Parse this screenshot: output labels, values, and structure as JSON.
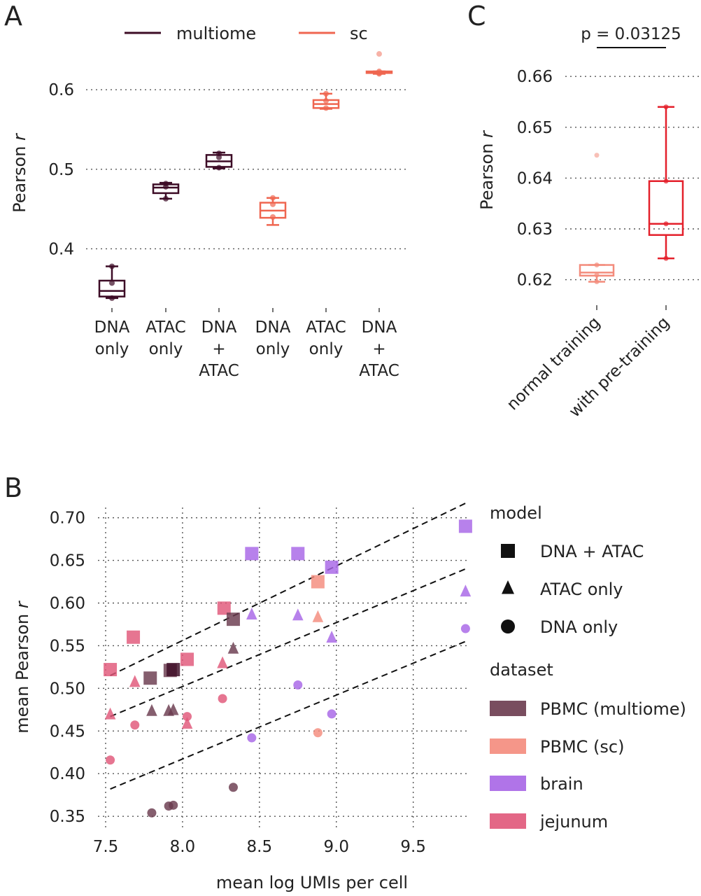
{
  "colors": {
    "multiome": "#3d0c26",
    "sc": "#ef6650",
    "normal": "#f38c7c",
    "pretrain": "#e4202b",
    "pbmc_multiome": "#6a3a4e",
    "pbmc_sc": "#f48b7c",
    "brain": "#a765e6",
    "jejunum": "#e05779"
  },
  "panel_labels": {
    "a": "A",
    "b": "B",
    "c": "C"
  },
  "chart_data": [
    {
      "id": "A",
      "type": "box",
      "ylabel": "Pearson",
      "ylabel_italic": "r",
      "ylim": [
        0.33,
        0.66
      ],
      "yticks": [
        0.4,
        0.5,
        0.6
      ],
      "ytick_labels": [
        "0.4",
        "0.5",
        "0.6"
      ],
      "grid": "horizontal dotted",
      "legend": {
        "placement": "top",
        "items": [
          {
            "label": "multiome",
            "color": "#3d0c26"
          },
          {
            "label": "sc",
            "color": "#ef6650"
          }
        ]
      },
      "categories": [
        {
          "lines": [
            "DNA",
            "only"
          ],
          "group": "multiome"
        },
        {
          "lines": [
            "ATAC",
            "only"
          ],
          "group": "multiome"
        },
        {
          "lines": [
            "DNA",
            "+",
            "ATAC"
          ],
          "group": "multiome"
        },
        {
          "lines": [
            "DNA",
            "only"
          ],
          "group": "sc"
        },
        {
          "lines": [
            "ATAC",
            "only"
          ],
          "group": "sc"
        },
        {
          "lines": [
            "DNA",
            "+",
            "ATAC"
          ],
          "group": "sc"
        }
      ],
      "boxes": [
        {
          "min": 0.338,
          "q1": 0.34,
          "median": 0.347,
          "q3": 0.36,
          "max": 0.378,
          "points": [
            0.378,
            0.357,
            0.338
          ]
        },
        {
          "min": 0.463,
          "q1": 0.47,
          "median": 0.477,
          "q3": 0.481,
          "max": 0.483,
          "points": [
            0.482,
            0.478,
            0.463
          ]
        },
        {
          "min": 0.501,
          "q1": 0.503,
          "median": 0.51,
          "q3": 0.518,
          "max": 0.521,
          "points": [
            0.52,
            0.515,
            0.502
          ]
        },
        {
          "min": 0.43,
          "q1": 0.439,
          "median": 0.448,
          "q3": 0.458,
          "max": 0.464,
          "points": [
            0.464,
            0.456,
            0.44
          ]
        },
        {
          "min": 0.576,
          "q1": 0.577,
          "median": 0.582,
          "q3": 0.587,
          "max": 0.595,
          "points": [
            0.595,
            0.586,
            0.577
          ]
        },
        {
          "min": 0.62,
          "q1": 0.621,
          "median": 0.622,
          "q3": 0.623,
          "max": 0.623,
          "points": [
            0.623,
            0.621,
            0.62
          ],
          "outliers": [
            0.645
          ]
        }
      ]
    },
    {
      "id": "C",
      "type": "box",
      "ylabel": "Pearson",
      "ylabel_italic": "r",
      "ylim": [
        0.6165,
        0.6665
      ],
      "yticks": [
        0.62,
        0.63,
        0.64,
        0.65,
        0.66
      ],
      "ytick_labels": [
        "0.62",
        "0.63",
        "0.64",
        "0.65",
        "0.66"
      ],
      "grid": "horizontal dotted",
      "categories": [
        "normal training",
        "with pre-training"
      ],
      "annotation": "p = 0.03125",
      "boxes": [
        {
          "min": 0.6196,
          "q1": 0.6208,
          "median": 0.6214,
          "q3": 0.6229,
          "max": 0.6229,
          "points": [
            0.6229,
            0.6209,
            0.6196
          ],
          "outliers": [
            0.6445
          ]
        },
        {
          "min": 0.6242,
          "q1": 0.6288,
          "median": 0.631,
          "q3": 0.6394,
          "max": 0.654,
          "points": [
            0.654,
            0.6394,
            0.631,
            0.6242
          ]
        }
      ]
    },
    {
      "id": "B",
      "type": "scatter",
      "xlabel": "mean log UMIs per cell",
      "ylabel": "mean Pearson",
      "ylabel_italic": "r",
      "xlim": [
        7.45,
        9.87
      ],
      "ylim": [
        0.337,
        0.712
      ],
      "xticks": [
        7.5,
        8.0,
        8.5,
        9.0,
        9.5
      ],
      "xtick_labels": [
        "7.5",
        "8.0",
        "8.5",
        "9.0",
        "9.5"
      ],
      "yticks": [
        0.35,
        0.4,
        0.45,
        0.5,
        0.55,
        0.6,
        0.65,
        0.7
      ],
      "ytick_labels": [
        "0.35",
        "0.40",
        "0.45",
        "0.50",
        "0.55",
        "0.60",
        "0.65",
        "0.70"
      ],
      "grid": "both dotted",
      "legend": {
        "placement": "right",
        "model_title": "model",
        "models": [
          {
            "label": "DNA + ATAC",
            "marker": "square"
          },
          {
            "label": "ATAC only",
            "marker": "triangle"
          },
          {
            "label": "DNA only",
            "marker": "circle"
          }
        ],
        "dataset_title": "dataset",
        "datasets": [
          {
            "label": "PBMC (multiome)",
            "key": "pbmc_multiome"
          },
          {
            "label": "PBMC (sc)",
            "key": "pbmc_sc"
          },
          {
            "label": "brain",
            "key": "brain"
          },
          {
            "label": "jejunum",
            "key": "jejunum"
          }
        ]
      },
      "trend_lines": [
        {
          "model": "square",
          "x": [
            7.53,
            9.84
          ],
          "y": [
            0.515,
            0.717
          ]
        },
        {
          "model": "triangle",
          "x": [
            7.53,
            9.84
          ],
          "y": [
            0.467,
            0.64
          ]
        },
        {
          "model": "circle",
          "x": [
            7.53,
            9.84
          ],
          "y": [
            0.382,
            0.555
          ]
        }
      ],
      "points": [
        {
          "x": 7.53,
          "y": 0.522,
          "m": "square",
          "d": "jejunum"
        },
        {
          "x": 7.68,
          "y": 0.56,
          "m": "square",
          "d": "jejunum"
        },
        {
          "x": 8.03,
          "y": 0.534,
          "m": "square",
          "d": "jejunum"
        },
        {
          "x": 8.27,
          "y": 0.594,
          "m": "square",
          "d": "jejunum"
        },
        {
          "x": 7.79,
          "y": 0.512,
          "m": "square",
          "d": "pbmc_multiome"
        },
        {
          "x": 7.92,
          "y": 0.521,
          "m": "square",
          "d": "pbmc_multiome"
        },
        {
          "x": 7.94,
          "y": 0.522,
          "m": "square",
          "d": "multiome_dark"
        },
        {
          "x": 8.33,
          "y": 0.581,
          "m": "square",
          "d": "pbmc_multiome"
        },
        {
          "x": 8.88,
          "y": 0.625,
          "m": "square",
          "d": "pbmc_sc"
        },
        {
          "x": 8.45,
          "y": 0.658,
          "m": "square",
          "d": "brain"
        },
        {
          "x": 8.75,
          "y": 0.658,
          "m": "square",
          "d": "brain"
        },
        {
          "x": 8.97,
          "y": 0.642,
          "m": "square",
          "d": "brain"
        },
        {
          "x": 9.84,
          "y": 0.69,
          "m": "square",
          "d": "brain"
        },
        {
          "x": 7.53,
          "y": 0.469,
          "m": "triangle",
          "d": "jejunum"
        },
        {
          "x": 7.69,
          "y": 0.507,
          "m": "triangle",
          "d": "jejunum"
        },
        {
          "x": 8.03,
          "y": 0.458,
          "m": "triangle",
          "d": "jejunum"
        },
        {
          "x": 8.26,
          "y": 0.529,
          "m": "triangle",
          "d": "jejunum"
        },
        {
          "x": 7.8,
          "y": 0.473,
          "m": "triangle",
          "d": "pbmc_multiome"
        },
        {
          "x": 7.91,
          "y": 0.473,
          "m": "triangle",
          "d": "pbmc_multiome"
        },
        {
          "x": 7.94,
          "y": 0.474,
          "m": "triangle",
          "d": "pbmc_multiome"
        },
        {
          "x": 8.33,
          "y": 0.546,
          "m": "triangle",
          "d": "pbmc_multiome"
        },
        {
          "x": 8.88,
          "y": 0.583,
          "m": "triangle",
          "d": "pbmc_sc"
        },
        {
          "x": 8.45,
          "y": 0.586,
          "m": "triangle",
          "d": "brain"
        },
        {
          "x": 8.75,
          "y": 0.585,
          "m": "triangle",
          "d": "brain"
        },
        {
          "x": 8.97,
          "y": 0.559,
          "m": "triangle",
          "d": "brain"
        },
        {
          "x": 9.84,
          "y": 0.613,
          "m": "triangle",
          "d": "brain"
        },
        {
          "x": 7.53,
          "y": 0.416,
          "m": "circle",
          "d": "jejunum"
        },
        {
          "x": 7.69,
          "y": 0.457,
          "m": "circle",
          "d": "jejunum"
        },
        {
          "x": 8.03,
          "y": 0.467,
          "m": "circle",
          "d": "jejunum"
        },
        {
          "x": 8.26,
          "y": 0.488,
          "m": "circle",
          "d": "jejunum"
        },
        {
          "x": 7.8,
          "y": 0.354,
          "m": "circle",
          "d": "pbmc_multiome"
        },
        {
          "x": 7.91,
          "y": 0.362,
          "m": "circle",
          "d": "pbmc_multiome"
        },
        {
          "x": 7.94,
          "y": 0.363,
          "m": "circle",
          "d": "pbmc_multiome"
        },
        {
          "x": 8.33,
          "y": 0.384,
          "m": "circle",
          "d": "pbmc_multiome"
        },
        {
          "x": 8.88,
          "y": 0.448,
          "m": "circle",
          "d": "pbmc_sc"
        },
        {
          "x": 8.45,
          "y": 0.442,
          "m": "circle",
          "d": "brain"
        },
        {
          "x": 8.75,
          "y": 0.504,
          "m": "circle",
          "d": "brain"
        },
        {
          "x": 8.97,
          "y": 0.47,
          "m": "circle",
          "d": "brain"
        },
        {
          "x": 9.84,
          "y": 0.57,
          "m": "circle",
          "d": "brain"
        }
      ]
    }
  ]
}
